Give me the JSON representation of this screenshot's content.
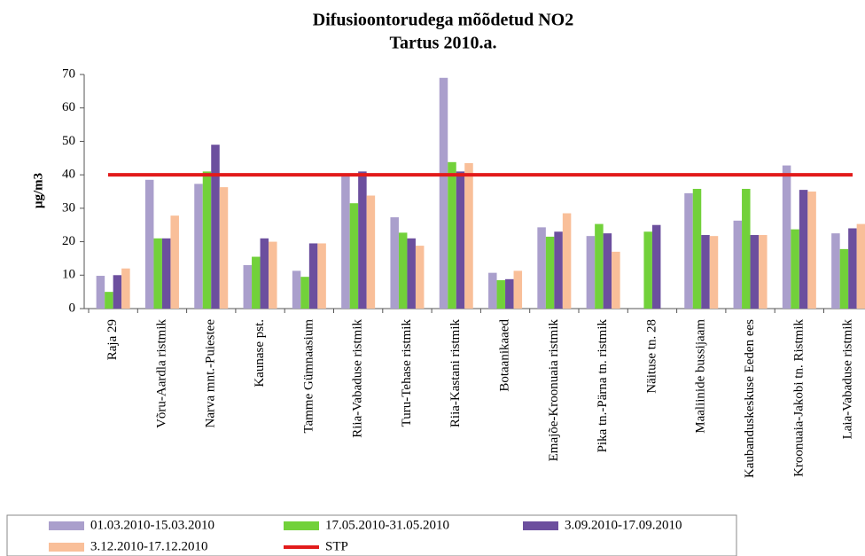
{
  "chart_data": {
    "type": "bar",
    "title": [
      "Difusioontorudega mõõdetud NO2",
      "Tartus 2010.a."
    ],
    "y_label": "µg/m3",
    "categories": [
      "Raja 29",
      "Võru-Aardla ristmik",
      "Narva mnt.-Puiestee",
      "Kaunase pst.",
      "Tamme Gümnaasium",
      "Riia-Vabaduse ristmik",
      "Turu-Tehase ristmik",
      "Riia-Kastani ristmik",
      "Botaanikaaed",
      "Emajõe-Kroonuaia ristmik",
      "Pika tn.-Pärna tn. ristmik",
      "Näituse tn. 28",
      "Maaliinide bussijaam",
      "Kaubanduskeskuse Eeden ees",
      "Kroonuaia-Jakobi tn. Ristmik",
      "Laia-Vabaduse ristmik"
    ],
    "series": [
      {
        "name": "01.03.2010-15.03.2010",
        "color": "#aa9fcc",
        "values": [
          9.8,
          38.5,
          37.3,
          13,
          11.3,
          39.5,
          27.3,
          69,
          10.7,
          24.3,
          21.7,
          null,
          34.5,
          26.3,
          42.8,
          22.5
        ]
      },
      {
        "name": "17.05.2010-31.05.2010",
        "color": "#72d13a",
        "values": [
          5,
          21,
          41,
          15.5,
          9.5,
          31.5,
          22.7,
          43.8,
          8.5,
          21.5,
          25.3,
          23,
          35.8,
          35.8,
          23.7,
          17.8
        ]
      },
      {
        "name": "3.09.2010-17.09.2010",
        "color": "#6c4f9e",
        "values": [
          10,
          21,
          49,
          21,
          19.5,
          41,
          21,
          41,
          8.8,
          23,
          22.5,
          25,
          22,
          22,
          35.5,
          24
        ]
      },
      {
        "name": "3.12.2010-17.12.2010",
        "color": "#f9bf99",
        "values": [
          12,
          27.8,
          36.3,
          20,
          19.5,
          33.8,
          18.8,
          43.5,
          11.3,
          28.5,
          17,
          null,
          21.7,
          22,
          35,
          25.3
        ]
      }
    ],
    "stp": {
      "name": "STP",
      "value": 40,
      "color": "#e21b1b"
    },
    "ylim": [
      0,
      70
    ],
    "yticks": [
      0,
      10,
      20,
      30,
      40,
      50,
      60,
      70
    ]
  }
}
